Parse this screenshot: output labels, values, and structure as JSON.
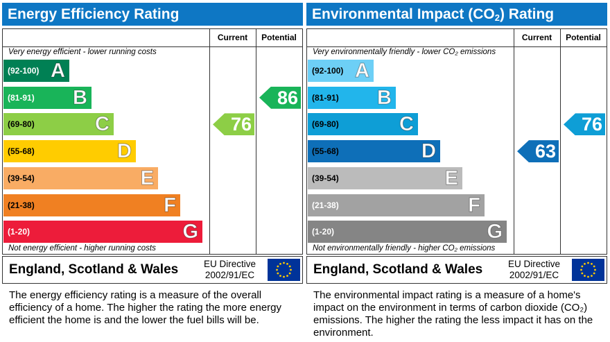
{
  "colors": {
    "title_bg": "#0e77c4",
    "eer": [
      "#008054",
      "#19b459",
      "#8dce46",
      "#ffcc00",
      "#f9ac64",
      "#f08022",
      "#ed1c3a"
    ],
    "ei": [
      "#6dcff6",
      "#22b5eb",
      "#0e9ed6",
      "#0e6fb8",
      "#bbbbbb",
      "#a2a2a2",
      "#858585"
    ],
    "eu_flag_blue": "#003399",
    "eu_flag_star": "#ffcc00"
  },
  "chart_data": [
    {
      "type": "bar",
      "title": "Energy Efficiency Rating",
      "column_headers": [
        "Current",
        "Potential"
      ],
      "top_caption": "Very energy efficient - lower running costs",
      "bottom_caption": "Not energy efficient - higher running costs",
      "bands": [
        {
          "range": "(92-100)",
          "letter": "A"
        },
        {
          "range": "(81-91)",
          "letter": "B"
        },
        {
          "range": "(69-80)",
          "letter": "C"
        },
        {
          "range": "(55-68)",
          "letter": "D"
        },
        {
          "range": "(39-54)",
          "letter": "E"
        },
        {
          "range": "(21-38)",
          "letter": "F"
        },
        {
          "range": "(1-20)",
          "letter": "G"
        }
      ],
      "current": {
        "value": 76,
        "band": "C",
        "color": "#8dce46"
      },
      "potential": {
        "value": 86,
        "band": "B",
        "color": "#19b459"
      },
      "country": "England, Scotland & Wales",
      "directive": [
        "EU Directive",
        "2002/91/EC"
      ],
      "description": "The energy efficiency rating is a measure of the overall efficiency of a home. The higher the rating the more energy efficient the home is and the lower the fuel bills will be."
    },
    {
      "type": "bar",
      "title_main": "Environmental Impact (CO",
      "title_sub": "2",
      "title_end": ") Rating",
      "column_headers": [
        "Current",
        "Potential"
      ],
      "top_caption": "Very environmentally friendly - lower CO₂ emissions",
      "bottom_caption": "Not environmentally friendly - higher CO₂ emissions",
      "bands": [
        {
          "range": "(92-100)",
          "letter": "A"
        },
        {
          "range": "(81-91)",
          "letter": "B"
        },
        {
          "range": "(69-80)",
          "letter": "C"
        },
        {
          "range": "(55-68)",
          "letter": "D"
        },
        {
          "range": "(39-54)",
          "letter": "E"
        },
        {
          "range": "(21-38)",
          "letter": "F"
        },
        {
          "range": "(1-20)",
          "letter": "G"
        }
      ],
      "current": {
        "value": 63,
        "band": "D",
        "color": "#0e6fb8"
      },
      "potential": {
        "value": 76,
        "band": "C",
        "color": "#0e9ed6"
      },
      "country": "England, Scotland & Wales",
      "directive": [
        "EU Directive",
        "2002/91/EC"
      ],
      "description": "The environmental impact rating is a measure of a home's impact on the environment in terms of carbon dioxide (CO₂) emissions. The higher the rating the less impact it has on the environment."
    }
  ]
}
